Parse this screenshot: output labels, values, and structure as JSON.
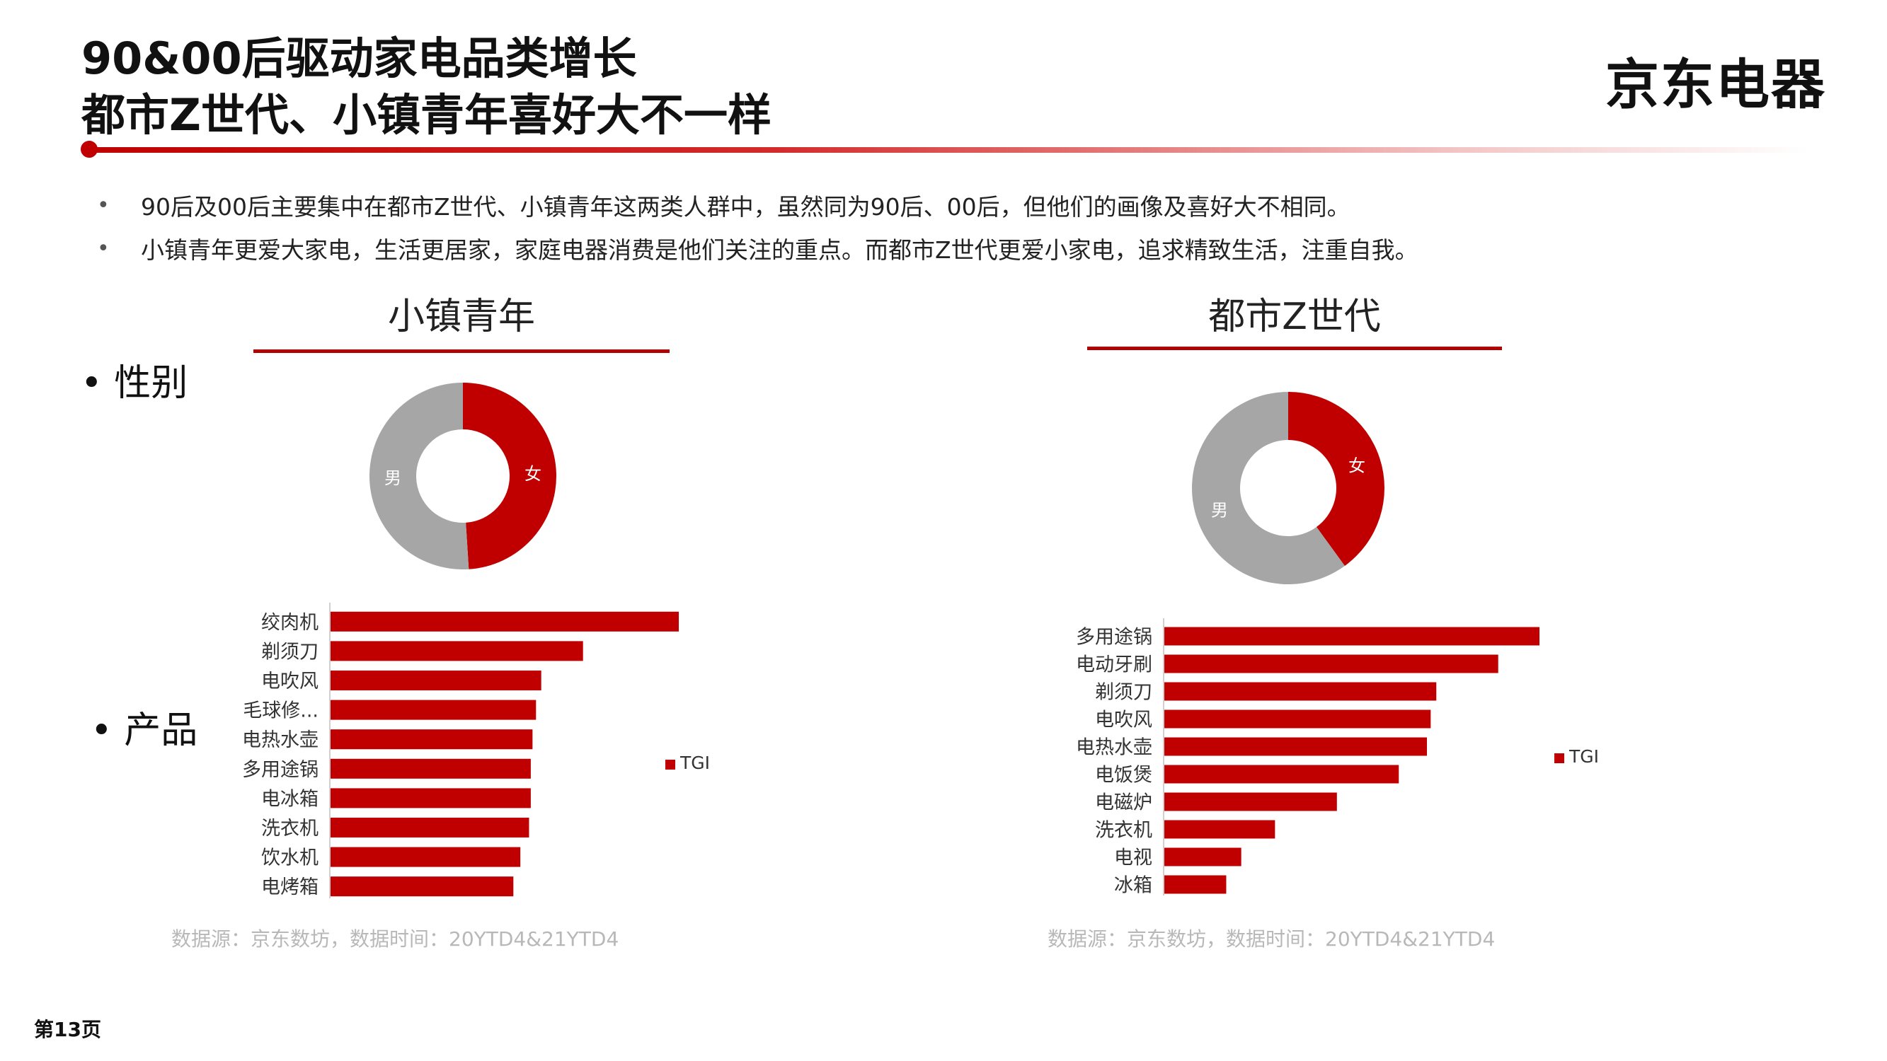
{
  "header": {
    "title_line1": "90&00后驱动家电品类增长",
    "title_line2": "都市Z世代、小镇青年喜好大不一样",
    "logo_text": "京东电器"
  },
  "bullets": [
    "90后及00后主要集中在都市Z世代、小镇青年这两类人群中，虽然同为90后、00后，但他们的画像及喜好大不相同。",
    "小镇青年更爱大家电，生活更居家，家庭电器消费是他们关注的重点。而都市Z世代更爱小家电，追求精致生活，注重自我。"
  ],
  "section_labels": {
    "gender": "• 性别",
    "product": "• 产品"
  },
  "panels": [
    {
      "title": "小镇青年",
      "source": "数据源：京东数坊，数据时间：20YTD4&21YTD4"
    },
    {
      "title": "都市Z世代",
      "source": "数据源：京东数坊，数据时间：20YTD4&21YTD4"
    }
  ],
  "page_number": "第13页",
  "colors": {
    "accent": "#c00000",
    "gray": "#a6a6a6"
  },
  "chart_data": [
    {
      "type": "pie",
      "subtype": "donut",
      "panel": "小镇青年",
      "slices": [
        {
          "label": "女",
          "value": 49,
          "color": "#c00000"
        },
        {
          "label": "男",
          "value": 51,
          "color": "#a6a6a6"
        }
      ]
    },
    {
      "type": "bar",
      "orientation": "horizontal",
      "panel": "小镇青年",
      "categories": [
        "绞肉机",
        "剃须刀",
        "电吹风",
        "毛球修...",
        "电热水壶",
        "多用途锅",
        "电冰箱",
        "洗衣机",
        "饮水机",
        "电烤箱"
      ],
      "series": [
        {
          "name": "TGI",
          "values": [
            100,
            72.5,
            60.5,
            59,
            58,
            57.5,
            57.5,
            57,
            54.5,
            52.5
          ],
          "color": "#c00000"
        }
      ],
      "xlim": [
        0,
        100
      ],
      "legend": "right"
    },
    {
      "type": "pie",
      "subtype": "donut",
      "panel": "都市Z世代",
      "slices": [
        {
          "label": "女",
          "value": 40,
          "color": "#c00000"
        },
        {
          "label": "男",
          "value": 60,
          "color": "#a6a6a6"
        }
      ]
    },
    {
      "type": "bar",
      "orientation": "horizontal",
      "panel": "都市Z世代",
      "categories": [
        "多用途锅",
        "电动牙刷",
        "剃须刀",
        "电吹风",
        "电热水壶",
        "电饭煲",
        "电磁炉",
        "洗衣机",
        "电视",
        "冰箱"
      ],
      "series": [
        {
          "name": "TGI",
          "values": [
            100,
            89,
            72.5,
            71,
            70,
            62.5,
            46,
            29.5,
            20.5,
            16.5
          ],
          "color": "#c00000"
        }
      ],
      "xlim": [
        0,
        100
      ],
      "legend": "right"
    }
  ]
}
